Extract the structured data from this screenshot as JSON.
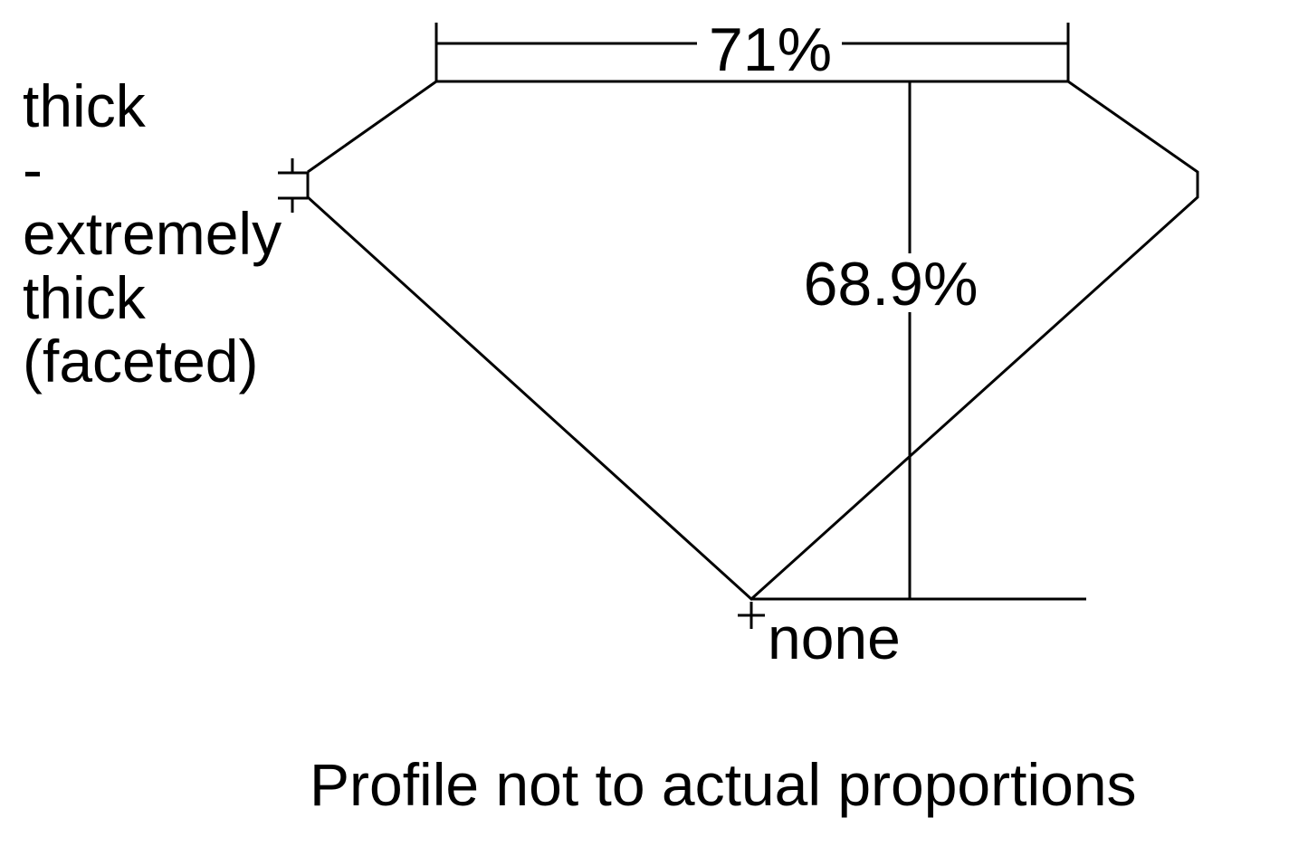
{
  "table_percent": "71%",
  "depth_percent": "68.9%",
  "girdle_label": [
    "thick",
    "-",
    "extremely",
    "thick",
    "(faceted)"
  ],
  "culet_label": "none",
  "footnote": "Profile not to actual proportions"
}
